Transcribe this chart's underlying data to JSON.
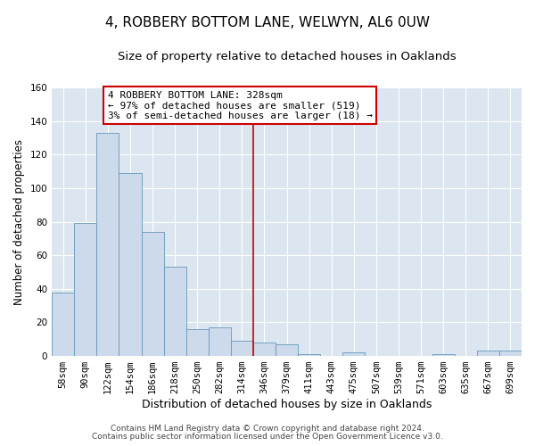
{
  "title": "4, ROBBERY BOTTOM LANE, WELWYN, AL6 0UW",
  "subtitle": "Size of property relative to detached houses in Oaklands",
  "xlabel": "Distribution of detached houses by size in Oaklands",
  "ylabel": "Number of detached properties",
  "bar_labels": [
    "58sqm",
    "90sqm",
    "122sqm",
    "154sqm",
    "186sqm",
    "218sqm",
    "250sqm",
    "282sqm",
    "314sqm",
    "346sqm",
    "379sqm",
    "411sqm",
    "443sqm",
    "475sqm",
    "507sqm",
    "539sqm",
    "571sqm",
    "603sqm",
    "635sqm",
    "667sqm",
    "699sqm"
  ],
  "bar_heights": [
    38,
    79,
    133,
    109,
    74,
    53,
    16,
    17,
    9,
    8,
    7,
    1,
    0,
    2,
    0,
    0,
    0,
    1,
    0,
    3,
    3
  ],
  "bar_color": "#ccdaeb",
  "bar_edgecolor": "#6699bb",
  "bar_linewidth": 0.6,
  "bar_width": 1.0,
  "vline_x": 8.5,
  "vline_color": "#cc0000",
  "vline_linewidth": 1.2,
  "ylim": [
    0,
    160
  ],
  "yticks": [
    0,
    20,
    40,
    60,
    80,
    100,
    120,
    140,
    160
  ],
  "annotation_text": "4 ROBBERY BOTTOM LANE: 328sqm\n← 97% of detached houses are smaller (519)\n3% of semi-detached houses are larger (18) →",
  "annotation_box_edgecolor": "#cc0000",
  "annotation_box_facecolor": "#ffffff",
  "footer_line1": "Contains HM Land Registry data © Crown copyright and database right 2024.",
  "footer_line2": "Contains public sector information licensed under the Open Government Licence v3.0.",
  "fig_background_color": "#ffffff",
  "plot_background_color": "#dce6f0",
  "grid_color": "#ffffff",
  "title_fontsize": 11,
  "subtitle_fontsize": 9.5,
  "xlabel_fontsize": 9,
  "ylabel_fontsize": 8.5,
  "tick_fontsize": 7.5,
  "footer_fontsize": 6.5,
  "ann_fontsize": 8
}
